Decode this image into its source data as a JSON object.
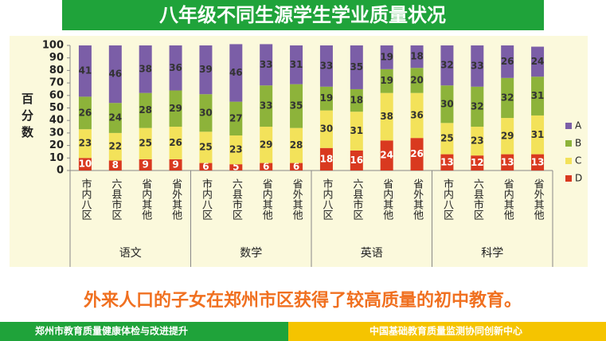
{
  "title": "八年级不同生源学生学业质量状况",
  "chart_data": {
    "type": "stacked_bar",
    "ylabel": "百分数",
    "groups": [
      "语文",
      "数学",
      "英语",
      "科学"
    ],
    "categories": [
      "市内八区",
      "六县市区",
      "省内其他",
      "省外其他",
      "市内八区",
      "六县市区",
      "省内其他",
      "省外其他",
      "市内八区",
      "六县市区",
      "省内其他",
      "省外其他",
      "市内八区",
      "六县市区",
      "省内其他",
      "省外其他"
    ],
    "series": [
      {
        "name": "D",
        "color": "#d9391f",
        "values": [
          10,
          8,
          9,
          9,
          6,
          5,
          6,
          6,
          18,
          16,
          24,
          26,
          13,
          12,
          13,
          13
        ]
      },
      {
        "name": "C",
        "color": "#f3e25a",
        "values": [
          23,
          22,
          25,
          26,
          25,
          23,
          29,
          28,
          30,
          31,
          38,
          36,
          25,
          23,
          29,
          31
        ]
      },
      {
        "name": "B",
        "color": "#8db33a",
        "values": [
          26,
          24,
          28,
          29,
          30,
          27,
          33,
          35,
          19,
          18,
          19,
          20,
          30,
          32,
          32,
          31
        ]
      },
      {
        "name": "A",
        "color": "#7b5ea7",
        "values": [
          41,
          46,
          38,
          36,
          39,
          46,
          33,
          31,
          33,
          35,
          19,
          18,
          32,
          33,
          26,
          24
        ]
      }
    ],
    "ylim": [
      0,
      100
    ],
    "yticks": [
      0,
      10,
      20,
      30,
      40,
      50,
      60,
      70,
      80,
      90,
      100
    ]
  },
  "conclusion": "外来人口的子女在郑州市区获得了较高质量的初中教育。",
  "footer": {
    "left": "郑州市教育质量健康体检与改进提升",
    "right": "中国基础教育质量监测协同创新中心"
  }
}
